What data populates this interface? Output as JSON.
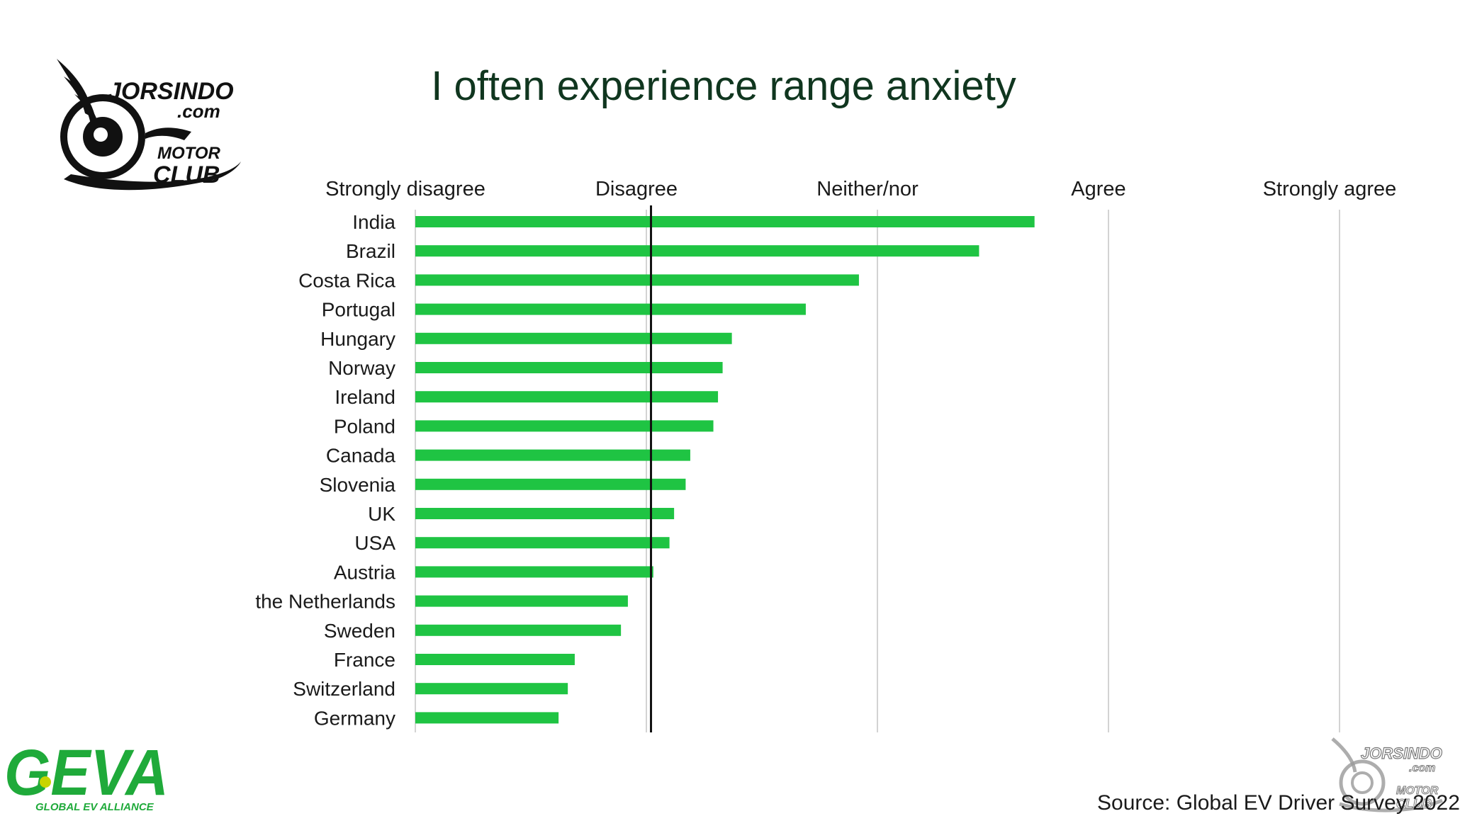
{
  "brand": {
    "top_logo_line1": "JORSINDO",
    "top_logo_line2": ".com",
    "top_logo_line3": "MOTOR",
    "top_logo_line4": "CLUB",
    "geva_logo": "GEVA",
    "geva_tagline": "GLOBAL EV ALLIANCE",
    "colors": {
      "geva_green": "#1faa3a",
      "geva_dot": "#c8d400",
      "bar": "#1fc443"
    }
  },
  "source": "Source: Global EV Driver Survey 2022",
  "chart_data": {
    "type": "bar",
    "orientation": "horizontal",
    "title": "I often experience range anxiety",
    "scale_labels": [
      "Strongly disagree",
      "Disagree",
      "Neither/nor",
      "Agree",
      "Strongly agree"
    ],
    "xlim": [
      1,
      5
    ],
    "reference_line": 2.02,
    "categories": [
      "India",
      "Brazil",
      "Costa Rica",
      "Portugal",
      "Hungary",
      "Norway",
      "Ireland",
      "Poland",
      "Canada",
      "Slovenia",
      "UK",
      "USA",
      "Austria",
      "the Netherlands",
      "Sweden",
      "France",
      "Switzerland",
      "Germany"
    ],
    "values": [
      3.68,
      3.44,
      2.92,
      2.69,
      2.37,
      2.33,
      2.31,
      2.29,
      2.19,
      2.17,
      2.12,
      2.1,
      2.03,
      1.92,
      1.89,
      1.69,
      1.66,
      1.62
    ],
    "bar_color": "#1fc443",
    "grid": true
  }
}
